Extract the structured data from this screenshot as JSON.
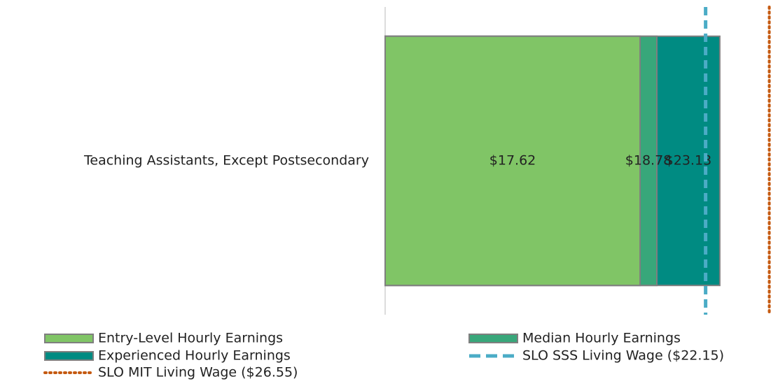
{
  "chart_data": {
    "type": "bar",
    "orientation": "horizontal",
    "categories": [
      "Teaching Assistants, Except Postsecondary"
    ],
    "series": [
      {
        "name": "Entry-Level Hourly Earnings",
        "color": "#80c566",
        "values": [
          17.62
        ],
        "value_labels": [
          "$17.62"
        ]
      },
      {
        "name": "Median Hourly Earnings",
        "color": "#38a77a",
        "values": [
          18.78
        ],
        "value_labels": [
          "$18.78"
        ]
      },
      {
        "name": "Experienced Hourly Earnings",
        "color": "#008b82",
        "values": [
          23.13
        ],
        "value_labels": [
          "$23.13"
        ]
      }
    ],
    "reference_lines": [
      {
        "name": "SLO SSS Living Wage ($22.15)",
        "value": 22.15,
        "color": "#4bacc6",
        "style": "dashed"
      },
      {
        "name": "SLO MIT Living Wage ($26.55)",
        "value": 26.55,
        "color": "#c55a11",
        "style": "dotted"
      }
    ],
    "xlim": [
      0,
      26.67
    ]
  }
}
